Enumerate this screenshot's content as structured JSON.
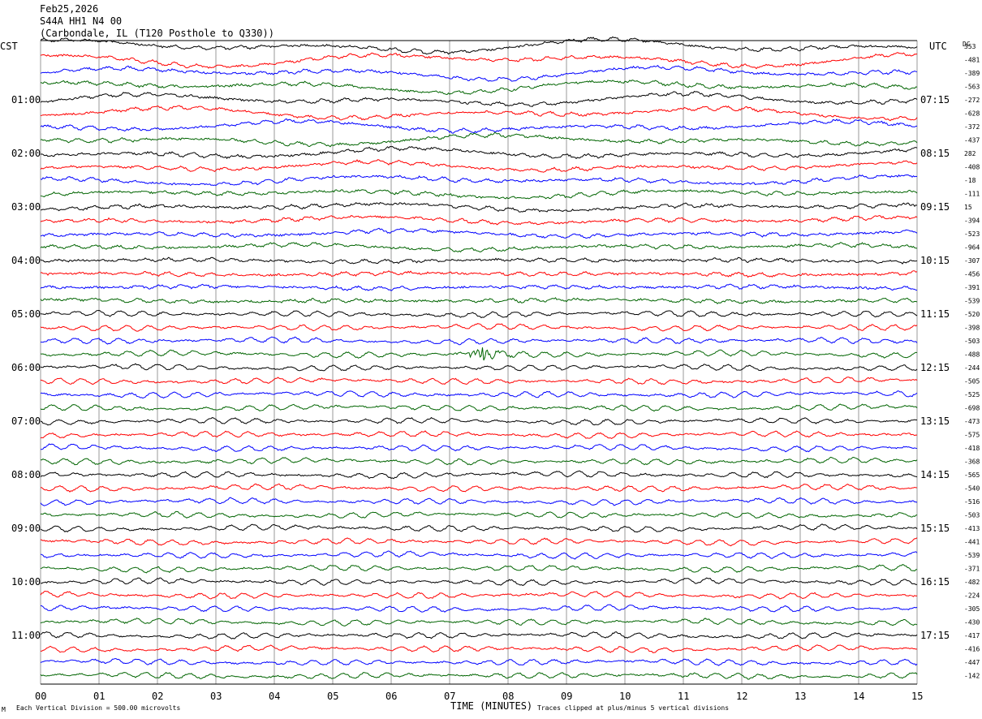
{
  "header": {
    "date": "Feb25,2026",
    "station": "S44A HH1 N4 00",
    "location": "(Carbondale, IL (T120 Posthole to Q330))"
  },
  "chart_data": {
    "type": "line",
    "title": "Feb25,2026",
    "xlabel": "TIME (MINUTES)",
    "left_axis_label": "CST",
    "right_axis_label": "UTC",
    "dc_label": "DC",
    "x_ticks": [
      "00",
      "01",
      "02",
      "03",
      "04",
      "05",
      "06",
      "07",
      "08",
      "09",
      "10",
      "11",
      "12",
      "13",
      "14",
      "15"
    ],
    "xlim": [
      0,
      15
    ],
    "left_hour_labels": [
      {
        "row": 4,
        "label": "01:00"
      },
      {
        "row": 8,
        "label": "02:00"
      },
      {
        "row": 12,
        "label": "03:00"
      },
      {
        "row": 16,
        "label": "04:00"
      },
      {
        "row": 20,
        "label": "05:00"
      },
      {
        "row": 24,
        "label": "06:00"
      },
      {
        "row": 28,
        "label": "07:00"
      },
      {
        "row": 32,
        "label": "08:00"
      },
      {
        "row": 36,
        "label": "09:00"
      },
      {
        "row": 40,
        "label": "10:00"
      },
      {
        "row": 44,
        "label": "11:00"
      }
    ],
    "right_hour_labels": [
      {
        "row": 4,
        "label": "07:15"
      },
      {
        "row": 8,
        "label": "08:15"
      },
      {
        "row": 12,
        "label": "09:15"
      },
      {
        "row": 16,
        "label": "10:15"
      },
      {
        "row": 20,
        "label": "11:15"
      },
      {
        "row": 24,
        "label": "12:15"
      },
      {
        "row": 28,
        "label": "13:15"
      },
      {
        "row": 32,
        "label": "14:15"
      },
      {
        "row": 36,
        "label": "15:15"
      },
      {
        "row": 40,
        "label": "16:15"
      },
      {
        "row": 44,
        "label": "17:15"
      }
    ],
    "dc_offsets": [
      "353",
      "-481",
      "-389",
      "-563",
      "-272",
      "-628",
      "-372",
      "-437",
      "282",
      "-408",
      "-18",
      "-111",
      "15",
      "-394",
      "-523",
      "-964",
      "-307",
      "-456",
      "-391",
      "-539",
      "-520",
      "-398",
      "-503",
      "-488",
      "-244",
      "-505",
      "-525",
      "-698",
      "-473",
      "-575",
      "-418",
      "-368",
      "-565",
      "-540",
      "-516",
      "-503",
      "-413",
      "-441",
      "-539",
      "-371",
      "-482",
      "-224",
      "-305",
      "-430",
      "-417",
      "-416",
      "-447",
      "-142"
    ],
    "trace_colors": [
      "#000000",
      "#ff0000",
      "#0000ff",
      "#006400"
    ],
    "row_count": 48,
    "footer_left": "Each Vertical Division =  500.00 microvolts",
    "footer_right": "Traces clipped at plus/minus 5 vertical divisions",
    "corner_mark": "M"
  }
}
